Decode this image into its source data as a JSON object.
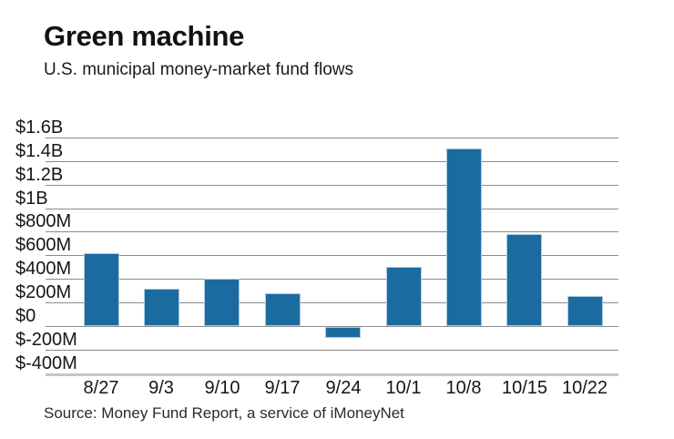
{
  "header": {
    "title": "Green machine",
    "subtitle": "U.S. municipal money-market fund flows"
  },
  "source": {
    "text": "Source: Money Fund Report, a service of iMoneyNet"
  },
  "chart_data": {
    "type": "bar",
    "title": "Green machine",
    "subtitle": "U.S. municipal money-market fund flows",
    "unit": "USD, millions",
    "categories": [
      "8/27",
      "9/3",
      "9/10",
      "9/17",
      "9/24",
      "10/1",
      "10/8",
      "10/15",
      "10/22"
    ],
    "values_millions": [
      620,
      315,
      405,
      280,
      -90,
      500,
      1510,
      785,
      255
    ],
    "xlabel": "",
    "ylabel": "",
    "ylim_millions": [
      -400,
      1600
    ],
    "grid": true,
    "legend_position": "none",
    "bar_color": "#1c6ba0",
    "y_axis": {
      "ticks": [
        {
          "label": "$1.6B",
          "value": 1600
        },
        {
          "label": "$1.4B",
          "value": 1400
        },
        {
          "label": "$1.2B",
          "value": 1200
        },
        {
          "label": "$1B",
          "value": 1000
        },
        {
          "label": "$800M",
          "value": 800
        },
        {
          "label": "$600M",
          "value": 600
        },
        {
          "label": "$400M",
          "value": 400
        },
        {
          "label": "$200M",
          "value": 200
        },
        {
          "label": "$0",
          "value": 0
        },
        {
          "label": "$-200M",
          "value": -200
        },
        {
          "label": "$-400M",
          "value": -400
        }
      ]
    }
  }
}
